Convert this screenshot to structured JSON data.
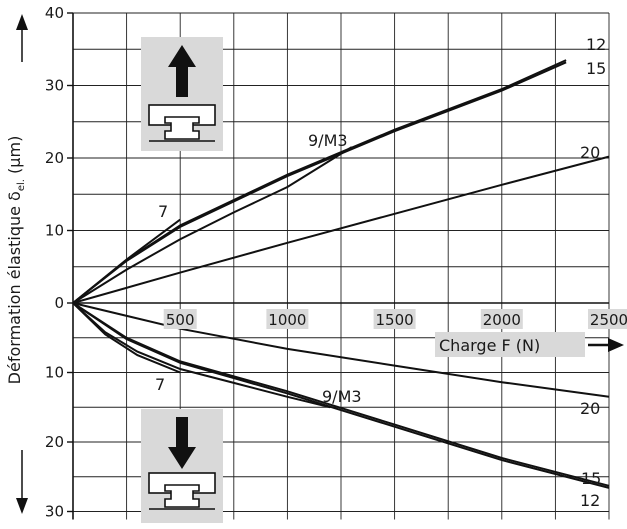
{
  "chart_data": {
    "type": "line",
    "title": "",
    "xlabel": "Charge F (N)",
    "ylabel": "Déformation élastique",
    "ylabel_symbol": "δ",
    "ylabel_subscript": "el.",
    "ylabel_unit": "(µm)",
    "xlim": [
      0,
      2500
    ],
    "x_ticks": [
      500,
      1000,
      1500,
      2000,
      2500
    ],
    "x_tick_labels": [
      "500",
      "1000",
      "1500",
      "2000",
      "2500"
    ],
    "y_ticks_up": [
      0,
      10,
      20,
      30,
      40
    ],
    "y_tick_labels_up": [
      "0",
      "10",
      "20",
      "30",
      "40"
    ],
    "y_ticks_down": [
      10,
      20,
      30
    ],
    "y_tick_labels_down": [
      "10",
      "20",
      "30"
    ],
    "ylim_up": [
      0,
      40
    ],
    "ylim_down": [
      0,
      30
    ],
    "grid": true,
    "upper_panel": {
      "direction": "up",
      "icon": "up-arrow-rail-carriage-icon",
      "series": [
        {
          "name": "7",
          "label": "7",
          "x": [
            0,
            250,
            500
          ],
          "y": [
            0,
            6.0,
            11.5
          ]
        },
        {
          "name": "9/M3",
          "label": "9/M3",
          "x": [
            0,
            250,
            500,
            750,
            1000,
            1300
          ],
          "y": [
            0,
            4.6,
            8.8,
            12.5,
            16.0,
            21.5
          ]
        },
        {
          "name": "12",
          "label": "12",
          "x": [
            0,
            250,
            500,
            1000,
            1500,
            2000,
            2300
          ],
          "y": [
            0,
            5.9,
            10.7,
            17.7,
            23.9,
            29.5,
            33.5
          ]
        },
        {
          "name": "15",
          "label": "15",
          "x": [
            0,
            250,
            500,
            1000,
            1500,
            2000,
            2300
          ],
          "y": [
            0,
            5.8,
            10.5,
            17.5,
            23.7,
            29.3,
            33.2
          ]
        },
        {
          "name": "20",
          "label": "20",
          "x": [
            0,
            500,
            1000,
            1500,
            2000,
            2500
          ],
          "y": [
            0,
            4.2,
            8.3,
            12.3,
            16.3,
            20.2
          ]
        }
      ]
    },
    "lower_panel": {
      "direction": "down",
      "icon": "down-arrow-rail-carriage-icon",
      "series": [
        {
          "name": "7",
          "label": "7",
          "x": [
            0,
            150,
            300,
            500
          ],
          "y": [
            0,
            4.5,
            7.5,
            10.0
          ]
        },
        {
          "name": "9/M3",
          "label": "9/M3",
          "x": [
            0,
            150,
            300,
            500,
            750,
            1000,
            1200
          ],
          "y": [
            0,
            4.2,
            7.0,
            9.5,
            11.5,
            13.5,
            15.0
          ]
        },
        {
          "name": "12",
          "label": "12",
          "x": [
            0,
            250,
            500,
            1000,
            1500,
            2000,
            2500
          ],
          "y": [
            0,
            5.2,
            8.6,
            13.0,
            17.8,
            22.6,
            26.6
          ]
        },
        {
          "name": "15",
          "label": "15",
          "x": [
            0,
            250,
            500,
            1000,
            1500,
            2000,
            2500
          ],
          "y": [
            0,
            5.0,
            8.4,
            12.7,
            17.5,
            22.3,
            26.3
          ]
        },
        {
          "name": "20",
          "label": "20",
          "x": [
            0,
            500,
            1000,
            1500,
            2000,
            2500
          ],
          "y": [
            0,
            3.7,
            6.6,
            9.0,
            11.4,
            13.5
          ]
        }
      ]
    },
    "curve_labels_upper": [
      "7",
      "9/M3",
      "12",
      "15",
      "20"
    ],
    "curve_labels_lower": [
      "7",
      "9/M3",
      "20",
      "15",
      "12"
    ]
  }
}
